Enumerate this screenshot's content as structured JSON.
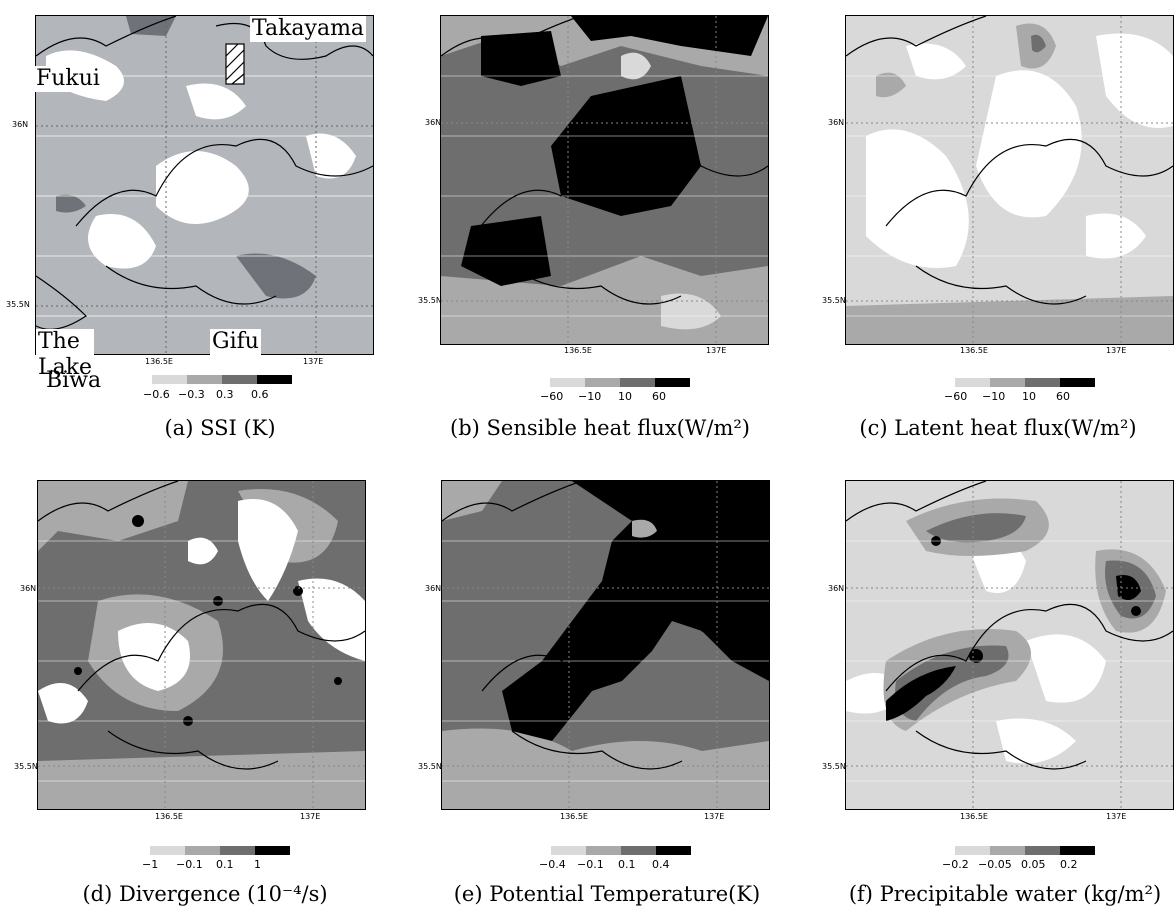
{
  "ticks": {
    "lat_36": "36N",
    "lat_355": "35.5N",
    "lon_1365": "136.5E",
    "lon_137": "137E"
  },
  "places": {
    "fukui": "Fukui",
    "takayama": "Takayama",
    "lake": "The Lake",
    "biwa": "Biwa",
    "gifu": "Gifu"
  },
  "colors": {
    "light": "#d9d9d9",
    "midlight": "#a9a9a9",
    "middark": "#6e6e6e",
    "dark": "#000000",
    "white": "#ffffff"
  },
  "panels": [
    {
      "id": "a",
      "caption": "(a) SSI (K)",
      "scale": [
        "−0.6",
        "−0.3",
        "0.3",
        "0.6"
      ]
    },
    {
      "id": "b",
      "caption": "(b) Sensible heat flux(W/m²)",
      "scale": [
        "−60",
        "−10",
        "10",
        "60"
      ]
    },
    {
      "id": "c",
      "caption": "(c) Latent heat flux(W/m²)",
      "scale": [
        "−60",
        "−10",
        "10",
        "60"
      ]
    },
    {
      "id": "d",
      "caption": "(d) Divergence (10⁻⁴/s)",
      "scale": [
        "−1",
        "−0.1",
        "0.1",
        "1"
      ]
    },
    {
      "id": "e",
      "caption": "(e) Potential Temperature(K)",
      "scale": [
        "−0.4",
        "−0.1",
        "0.1",
        "0.4"
      ]
    },
    {
      "id": "f",
      "caption": "(f) Precipitable water (kg/m²)",
      "scale": [
        "−0.2",
        "−0.05",
        "0.05",
        "0.2"
      ]
    }
  ]
}
